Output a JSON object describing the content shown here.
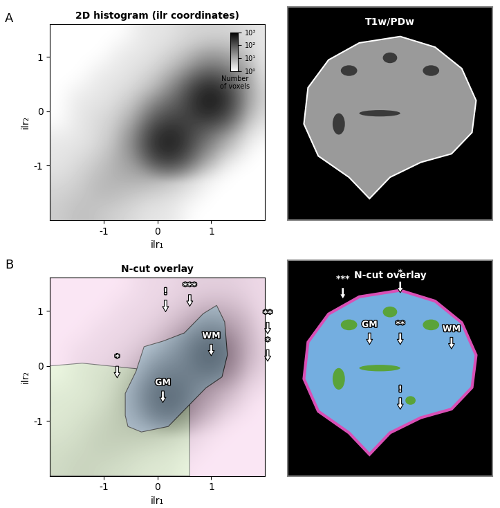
{
  "panel_labels": [
    "A",
    "B"
  ],
  "histogram": {
    "x_edges": [
      -2.0,
      -1.6,
      -1.2,
      -0.8,
      -0.4,
      0.0,
      0.4,
      0.8,
      1.2,
      1.6,
      2.0
    ],
    "y_edges": [
      -2.0,
      -1.6,
      -1.2,
      -0.8,
      -0.4,
      0.0,
      0.4,
      0.8,
      1.2,
      1.6
    ],
    "cells": [
      [
        4,
        6,
        4,
        3,
        2,
        2,
        1,
        1,
        1,
        1
      ],
      [
        3,
        4,
        8,
        6,
        4,
        3,
        2,
        1,
        1,
        1
      ],
      [
        2,
        3,
        5,
        12,
        15,
        10,
        4,
        2,
        1,
        1
      ],
      [
        2,
        2,
        3,
        8,
        60,
        600,
        80,
        10,
        3,
        1
      ],
      [
        1,
        2,
        3,
        5,
        20,
        150,
        200,
        60,
        8,
        2
      ],
      [
        1,
        2,
        2,
        3,
        6,
        20,
        120,
        700,
        40,
        3
      ],
      [
        1,
        1,
        2,
        2,
        3,
        6,
        20,
        80,
        30,
        2
      ],
      [
        1,
        1,
        1,
        2,
        2,
        3,
        5,
        10,
        8,
        2
      ],
      [
        1,
        1,
        1,
        1,
        2,
        2,
        3,
        3,
        3,
        2
      ]
    ],
    "colorbar": {
      "label": "Number of voxels",
      "range": [
        1,
        1000
      ],
      "log": true,
      "ticks": [
        {
          "value": 1,
          "label": "10⁰"
        },
        {
          "value": 10,
          "label": "10¹"
        },
        {
          "value": 100,
          "label": "10²"
        },
        {
          "value": 1000,
          "label": "10³"
        }
      ]
    }
  },
  "chart_data": [
    {
      "type": "heatmap",
      "panel": "A",
      "title": "2D histogram (ilr coordinates)",
      "x_label": "ilr₁",
      "y_label": "ilr₂",
      "xlim": [
        -2.0,
        2.0
      ],
      "ylim": [
        -2.0,
        1.6
      ],
      "xticks": [
        -1,
        0,
        1
      ],
      "yticks": [
        -1,
        0,
        1
      ]
    },
    {
      "type": "image",
      "panel": "A",
      "title": "T1w/PDw"
    },
    {
      "type": "overlay",
      "panel": "B",
      "title": "N-cut overlay",
      "x_label": "ilr₁",
      "y_label": "ilr₂",
      "xlim": [
        -2.0,
        2.0
      ],
      "ylim": [
        -2.0,
        1.6
      ],
      "xticks": [
        -1,
        0,
        1
      ],
      "yticks": [
        -1,
        0,
        1
      ],
      "background_color": "#f6c8e8",
      "clusters": [
        {
          "color": "#d5edbd",
          "polygon": [
            [
              -2.0,
              -2.0
            ],
            [
              -2.0,
              0.0
            ],
            [
              -1.4,
              0.05
            ],
            [
              -0.9,
              0.0
            ],
            [
              -0.4,
              -0.05
            ],
            [
              -0.2,
              -0.1
            ],
            [
              0.6,
              -0.1
            ],
            [
              0.6,
              -2.0
            ]
          ]
        },
        {
          "color": "#a9cbe8",
          "polygon": [
            [
              -0.6,
              -0.9
            ],
            [
              -0.55,
              -1.1
            ],
            [
              -0.3,
              -1.2
            ],
            [
              0.2,
              -1.1
            ],
            [
              0.55,
              -0.75
            ],
            [
              0.9,
              -0.4
            ],
            [
              1.2,
              -0.2
            ],
            [
              1.3,
              0.2
            ],
            [
              1.25,
              0.8
            ],
            [
              1.1,
              1.1
            ],
            [
              0.85,
              0.95
            ],
            [
              0.5,
              0.6
            ],
            [
              0.1,
              0.45
            ],
            [
              -0.25,
              0.35
            ],
            [
              -0.4,
              -0.1
            ],
            [
              -0.6,
              -0.5
            ]
          ]
        }
      ],
      "annotations": [
        {
          "text": "!",
          "x": 0.15,
          "y": 0.95
        },
        {
          "text": "***",
          "x": 0.6,
          "y": 1.05
        },
        {
          "text": "**",
          "x": 2.05,
          "y": 0.55
        },
        {
          "text": "*",
          "x": 2.05,
          "y": 0.05
        },
        {
          "text": "*",
          "x": -0.75,
          "y": -0.25
        },
        {
          "text": "GM",
          "x": 0.1,
          "y": -0.7
        },
        {
          "text": "WM",
          "x": 1.0,
          "y": 0.15
        }
      ]
    },
    {
      "type": "image",
      "panel": "B",
      "title": "N-cut overlay",
      "annotations": [
        "***",
        "*",
        "GM",
        "**",
        "WM",
        "!"
      ]
    }
  ]
}
